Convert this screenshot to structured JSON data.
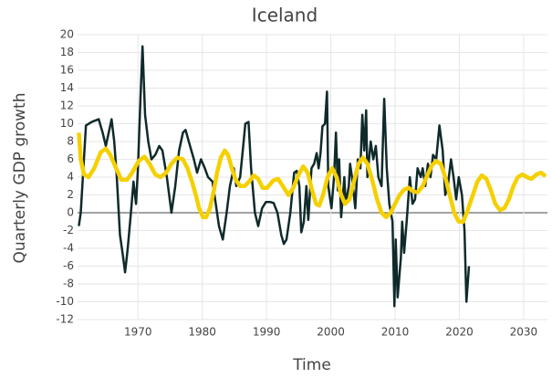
{
  "chart_data": {
    "type": "line",
    "title": "Iceland",
    "x_label": "Time",
    "y_label": "Quarterly GDP growth",
    "xlim": [
      1960.6,
      2033.7
    ],
    "ylim": [
      -12,
      20
    ],
    "xticks": [
      1970,
      1980,
      1990,
      2000,
      2010,
      2020,
      2030
    ],
    "yticks": [
      -12,
      -10,
      -8,
      -6,
      -4,
      -2,
      0,
      2,
      4,
      6,
      8,
      10,
      12,
      14,
      16,
      18,
      20
    ],
    "grid": true,
    "series": [
      {
        "color": "#0f2a2a",
        "width": 2.5,
        "x": [
          1960.8,
          1961.1,
          1961.9,
          1962.8,
          1963.9,
          1964.5,
          1965.0,
          1965.9,
          1966.3,
          1966.7,
          1967.2,
          1967.6,
          1968.0,
          1968.4,
          1968.9,
          1969.3,
          1969.7,
          1970.0,
          1970.4,
          1970.7,
          1971.1,
          1971.6,
          1972.1,
          1972.7,
          1973.3,
          1973.8,
          1974.5,
          1975.2,
          1975.8,
          1976.4,
          1977.0,
          1977.4,
          1977.9,
          1978.7,
          1979.2,
          1979.8,
          1980.4,
          1980.9,
          1981.6,
          1982.1,
          1982.6,
          1983.2,
          1983.8,
          1984.3,
          1984.9,
          1985.3,
          1985.9,
          1986.3,
          1986.7,
          1987.2,
          1987.6,
          1988.2,
          1988.7,
          1989.3,
          1989.9,
          1990.6,
          1991.1,
          1991.7,
          1992.3,
          1992.7,
          1993.1,
          1993.7,
          1994.3,
          1994.7,
          1995.1,
          1995.4,
          1995.8,
          1996.2,
          1996.5,
          1997.0,
          1997.4,
          1997.8,
          1998.1,
          1998.4,
          1998.7,
          1999.1,
          1999.4,
          1999.6,
          2000.1,
          2000.5,
          2000.8,
          2001.1,
          2001.3,
          2001.6,
          2002.1,
          2002.3,
          2002.8,
          2003.0,
          2003.3,
          2003.8,
          2004.2,
          2004.6,
          2004.9,
          2005.2,
          2005.5,
          2005.7,
          2006.2,
          2006.6,
          2007.0,
          2007.4,
          2007.9,
          2008.3,
          2008.7,
          2009.1,
          2009.6,
          2009.9,
          2010.1,
          2010.4,
          2010.9,
          2011.1,
          2011.4,
          2011.8,
          2012.3,
          2012.7,
          2013.1,
          2013.5,
          2014.0,
          2014.3,
          2014.7,
          2015.1,
          2015.5,
          2015.9,
          2016.4,
          2016.9,
          2017.4,
          2017.8,
          2018.2,
          2018.7,
          2019.1,
          2019.5,
          2019.9,
          2020.4,
          2020.8,
          2021.1,
          2021.5
        ],
        "values": [
          -1.5,
          0,
          9.8,
          10.2,
          10.5,
          9,
          7.5,
          10.5,
          8,
          4,
          -2.5,
          -4.5,
          -6.7,
          -4,
          0,
          3.5,
          1,
          5,
          13,
          18.7,
          11,
          8,
          6,
          6.5,
          7.5,
          7,
          4,
          0,
          3,
          7,
          9,
          9.3,
          8,
          6,
          4.5,
          6,
          5,
          4,
          3.5,
          1,
          -1.5,
          -3,
          0,
          3,
          5,
          3,
          4,
          7,
          10,
          10.2,
          5,
          0,
          -1.5,
          0.5,
          1.2,
          1.2,
          1.1,
          0,
          -2.5,
          -3.5,
          -3,
          0,
          4.5,
          4.7,
          3,
          -2.2,
          -1,
          3,
          -0.8,
          5,
          5.5,
          6.7,
          5,
          6.7,
          9.7,
          10,
          13.6,
          3,
          0.5,
          4,
          9,
          2.5,
          6,
          -0.5,
          4,
          1,
          3,
          5.5,
          4,
          0.5,
          6,
          5,
          11,
          7,
          11.5,
          4,
          8,
          6,
          7.5,
          4,
          3,
          12.8,
          5,
          1,
          -1,
          -10.5,
          -3,
          -9.5,
          -5,
          -1,
          -4.5,
          -1,
          4,
          1,
          1.5,
          5,
          4,
          5,
          3,
          5.5,
          4,
          6.5,
          6,
          9.8,
          7,
          2,
          3,
          6,
          4,
          1.5,
          4,
          2,
          -2,
          -10,
          -6
        ]
      },
      {
        "color": "#f5d000",
        "width": 4.5,
        "x": [
          1960.8,
          1961.1,
          1961.6,
          1962.3,
          1963.2,
          1964.2,
          1965.0,
          1965.7,
          1966.6,
          1967.4,
          1968.3,
          1969.1,
          1970.1,
          1971.0,
          1971.8,
          1972.7,
          1973.5,
          1974.4,
          1975.2,
          1976.1,
          1977.0,
          1977.7,
          1978.4,
          1979.0,
          1979.5,
          1980.1,
          1980.6,
          1981.2,
          1981.8,
          1982.3,
          1982.9,
          1983.5,
          1984.0,
          1984.6,
          1985.2,
          1985.9,
          1986.6,
          1987.3,
          1988.0,
          1988.7,
          1989.4,
          1990.1,
          1991.0,
          1991.8,
          1992.7,
          1993.4,
          1994.1,
          1995.0,
          1995.7,
          1996.4,
          1997.1,
          1997.7,
          1998.2,
          1998.8,
          1999.5,
          2000.2,
          2000.9,
          2001.6,
          2002.2,
          2002.9,
          2003.6,
          2004.3,
          2005.0,
          2005.7,
          2006.5,
          2007.2,
          2007.9,
          2008.6,
          2009.3,
          2010.0,
          2010.7,
          2011.4,
          2012.1,
          2012.8,
          2013.5,
          2014.3,
          2015.0,
          2015.7,
          2016.4,
          2017.1,
          2017.8,
          2018.5,
          2019.2,
          2019.9,
          2020.6,
          2021.3,
          2022.1,
          2022.8,
          2023.5,
          2024.2,
          2024.9,
          2025.6,
          2026.3,
          2027.0,
          2027.7,
          2028.4,
          2029.1,
          2029.8,
          2030.5,
          2031.2,
          2032.0,
          2032.7,
          2033.4
        ],
        "values": [
          9,
          6,
          4.3,
          4,
          5,
          6.8,
          7.2,
          6.5,
          5,
          3.7,
          3.7,
          4.5,
          5.8,
          6.3,
          5.5,
          4.3,
          4,
          4.5,
          5.5,
          6.2,
          6,
          5,
          3.5,
          2,
          0.5,
          -0.5,
          -0.5,
          0.5,
          2.5,
          4.5,
          6.2,
          7,
          6.5,
          5,
          3.7,
          3,
          3,
          3.5,
          4.2,
          3.8,
          2.8,
          2.8,
          3.6,
          3.8,
          2.8,
          2,
          2.7,
          4.3,
          5.2,
          4.5,
          2.5,
          1,
          0.8,
          2,
          4,
          5,
          4,
          2,
          1,
          1.5,
          3.5,
          5.5,
          6.2,
          5.5,
          3.5,
          1.5,
          0,
          -0.5,
          0,
          1,
          2,
          2.6,
          2.8,
          2.4,
          2.3,
          3,
          4.2,
          5.3,
          5.8,
          5.5,
          4,
          2,
          0,
          -1,
          -1,
          0.3,
          2,
          3.5,
          4.2,
          3.8,
          2.5,
          1,
          0.3,
          0.5,
          1.5,
          3,
          4,
          4.3,
          4,
          3.8,
          4.3,
          4.5,
          4.1
        ]
      }
    ]
  }
}
